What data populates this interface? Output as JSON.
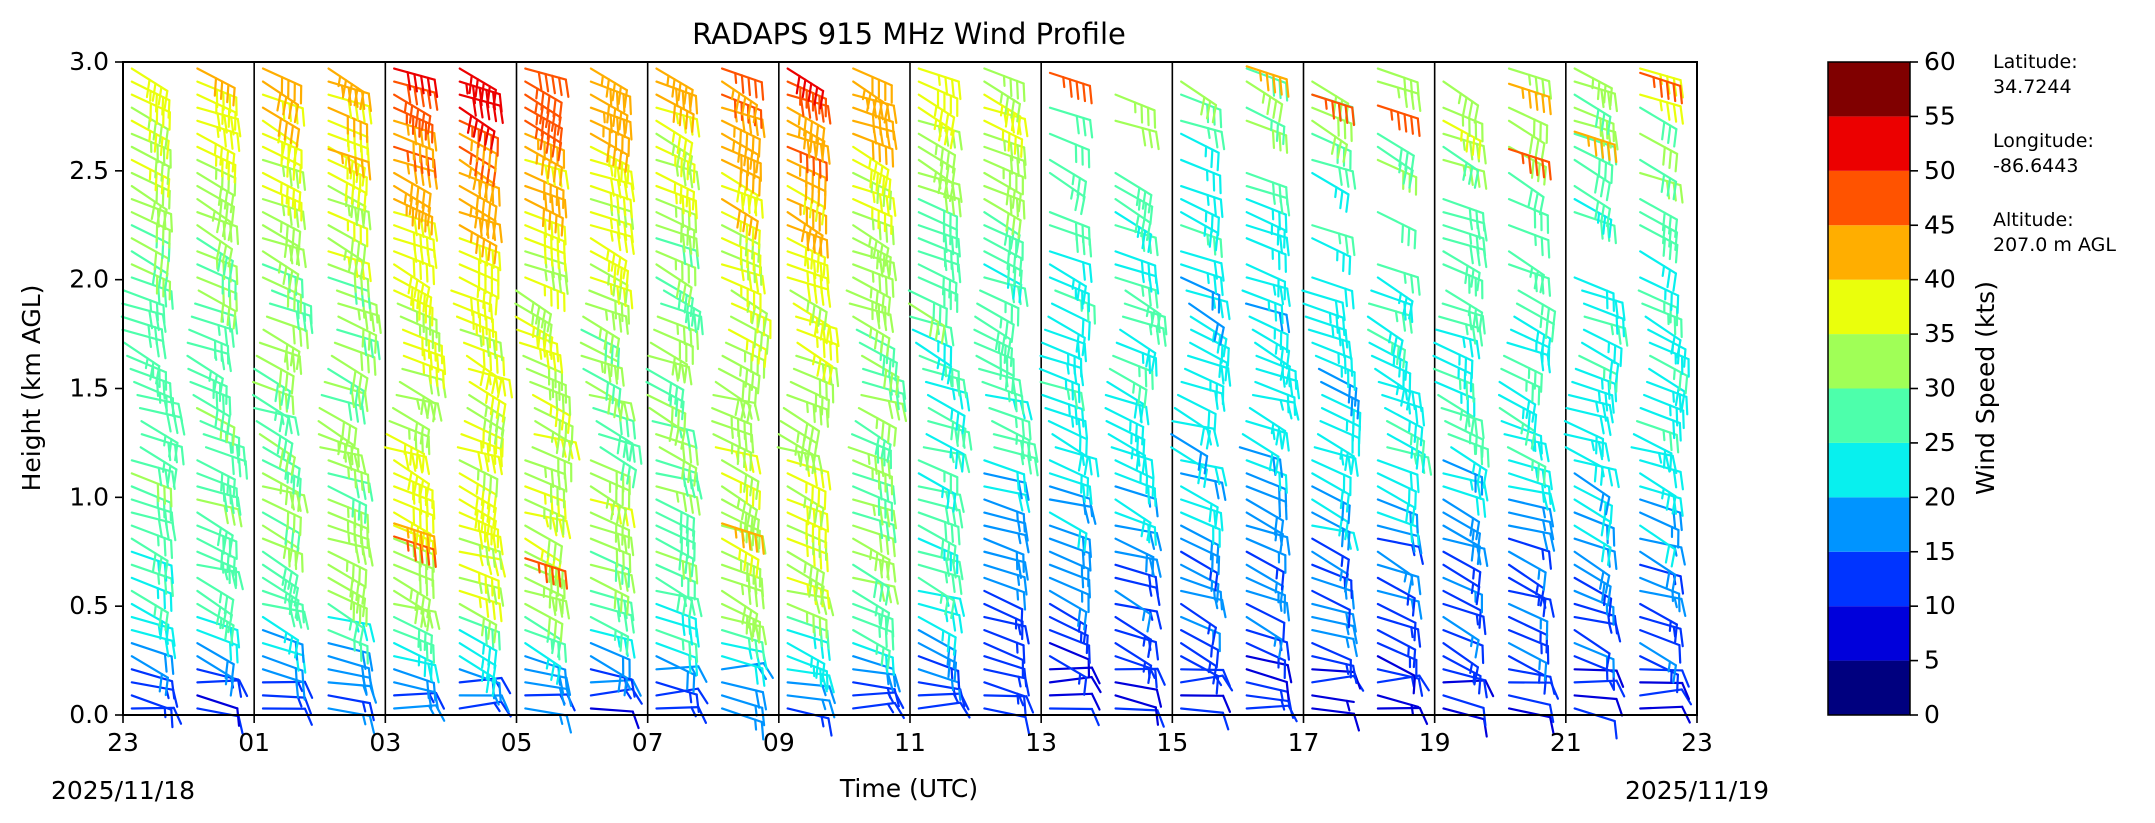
{
  "chart_data": {
    "type": "wind_barb_profile",
    "title": "RADAPS 915 MHz Wind Profile",
    "xlabel": "Time (UTC)",
    "ylabel": "Height (km AGL)",
    "xlim_hours": [
      0,
      24
    ],
    "ylim": [
      0,
      3.0
    ],
    "x_ticks": [
      {
        "hour": 0,
        "label": "23"
      },
      {
        "hour": 2,
        "label": "01"
      },
      {
        "hour": 4,
        "label": "03"
      },
      {
        "hour": 6,
        "label": "05"
      },
      {
        "hour": 8,
        "label": "07"
      },
      {
        "hour": 10,
        "label": "09"
      },
      {
        "hour": 12,
        "label": "11"
      },
      {
        "hour": 14,
        "label": "13"
      },
      {
        "hour": 16,
        "label": "15"
      },
      {
        "hour": 18,
        "label": "17"
      },
      {
        "hour": 20,
        "label": "19"
      },
      {
        "hour": 22,
        "label": "21"
      },
      {
        "hour": 24,
        "label": "23"
      }
    ],
    "y_ticks": [
      {
        "value": 0.0,
        "label": "0.0"
      },
      {
        "value": 0.5,
        "label": "0.5"
      },
      {
        "value": 1.0,
        "label": "1.0"
      },
      {
        "value": 1.5,
        "label": "1.5"
      },
      {
        "value": 2.0,
        "label": "2.0"
      },
      {
        "value": 2.5,
        "label": "2.5"
      },
      {
        "value": 3.0,
        "label": "3.0"
      }
    ],
    "vertical_lines_hours": [
      2,
      4,
      6,
      8,
      10,
      12,
      14,
      16,
      18,
      20,
      22
    ],
    "start_date": "2025/11/18",
    "end_date": "2025/11/19",
    "profile_hours": [
      0.5,
      1.5,
      2.5,
      3.5,
      4.5,
      5.5,
      6.5,
      7.5,
      8.5,
      9.5,
      10.5,
      11.5,
      12.5,
      13.5,
      14.5,
      15.5,
      16.5,
      17.5,
      18.5,
      19.5,
      20.5,
      21.5,
      22.5,
      23.5
    ],
    "height_step_km": 0.06,
    "max_height_km": 2.98,
    "profile_speed_scale": [
      1.0,
      1.05,
      1.1,
      1.15,
      1.3,
      1.35,
      1.25,
      1.2,
      1.1,
      1.25,
      1.3,
      1.15,
      1.0,
      0.95,
      0.85,
      0.9,
      0.8,
      0.8,
      0.85,
      0.85,
      0.95,
      0.9,
      0.85,
      0.9
    ],
    "speed_profile_kts": [
      {
        "h": 0.0,
        "spd": 10
      },
      {
        "h": 0.2,
        "spd": 14
      },
      {
        "h": 0.5,
        "spd": 24
      },
      {
        "h": 1.0,
        "spd": 28
      },
      {
        "h": 1.5,
        "spd": 26
      },
      {
        "h": 2.0,
        "spd": 28
      },
      {
        "h": 2.5,
        "spd": 32
      },
      {
        "h": 3.0,
        "spd": 38
      }
    ],
    "highlight_barbs": [
      {
        "hour": 3.5,
        "h": 2.6,
        "spd": 43
      },
      {
        "hour": 4.5,
        "h": 0.82,
        "spd": 45
      },
      {
        "hour": 4.5,
        "h": 0.88,
        "spd": 44
      },
      {
        "hour": 6.5,
        "h": 0.72,
        "spd": 46
      },
      {
        "hour": 9.5,
        "h": 0.88,
        "spd": 44
      },
      {
        "hour": 14.5,
        "h": 2.95,
        "spd": 45
      },
      {
        "hour": 17.5,
        "h": 2.98,
        "spd": 44
      },
      {
        "hour": 18.5,
        "h": 2.85,
        "spd": 46
      },
      {
        "hour": 19.5,
        "h": 2.8,
        "spd": 45
      },
      {
        "hour": 21.5,
        "h": 2.9,
        "spd": 44
      },
      {
        "hour": 21.5,
        "h": 2.6,
        "spd": 45
      },
      {
        "hour": 22.5,
        "h": 2.68,
        "spd": 44
      },
      {
        "hour": 23.5,
        "h": 2.95,
        "spd": 45
      }
    ],
    "colorbar": {
      "label": "Wind Speed (kts)",
      "levels": [
        0,
        5,
        10,
        15,
        20,
        25,
        30,
        35,
        40,
        45,
        50,
        55,
        60
      ],
      "colors": [
        "#00007f",
        "#0000db",
        "#0034ff",
        "#0094ff",
        "#08f0ee",
        "#4dffab",
        "#a0ff57",
        "#eaff0c",
        "#ffae00",
        "#ff5300",
        "#ec0000",
        "#800000"
      ]
    },
    "station": {
      "latitude_label": "Latitude:",
      "latitude": "34.7244",
      "longitude_label": "Longitude:",
      "longitude": "-86.6443",
      "altitude_label": "Altitude:",
      "altitude": "207.0 m AGL"
    }
  }
}
